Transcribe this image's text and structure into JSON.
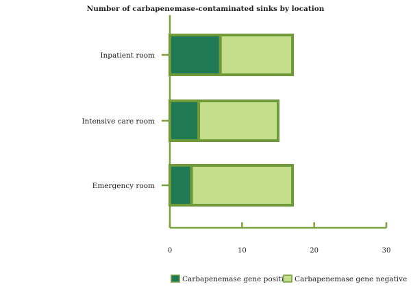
{
  "chart_data": {
    "type": "bar",
    "orientation": "horizontal",
    "stacked": true,
    "title": "Number of carbapenemase-contaminated sinks by location",
    "xlabel": "",
    "ylabel": "",
    "categories": [
      "Inpatient room",
      "Intensive care room",
      "Emergency room"
    ],
    "series": [
      {
        "name": "Carbapenemase gene positive",
        "values": [
          7,
          4,
          3
        ],
        "color": "#1f7a55"
      },
      {
        "name": "Carbapenemase gene negative",
        "values": [
          10,
          11,
          14
        ],
        "color": "#c4de8c"
      }
    ],
    "border_color": "#6f9a3a",
    "axis_color": "#7aa33f",
    "xlim": [
      0,
      30
    ],
    "xticks": [
      "0",
      "10",
      "20",
      "30"
    ],
    "grid": false,
    "legend_position": "bottom"
  }
}
